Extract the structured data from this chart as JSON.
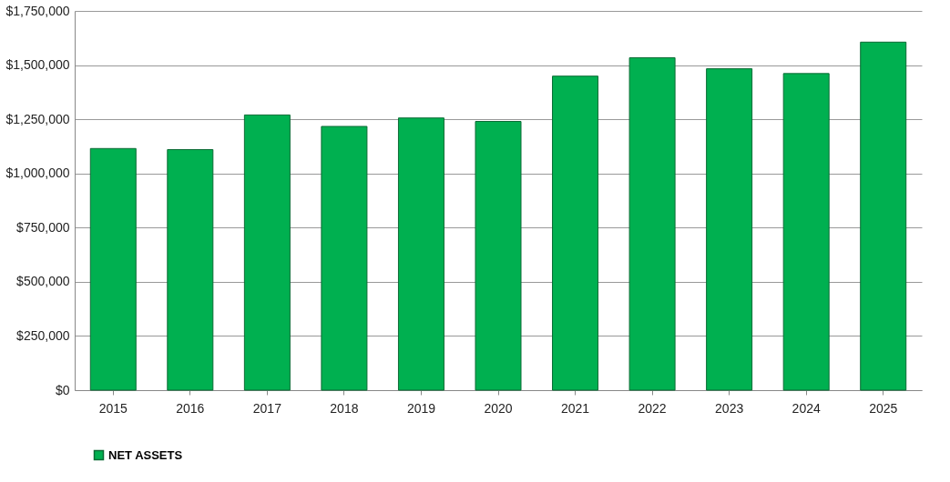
{
  "chart_data": {
    "type": "bar",
    "categories": [
      "2015",
      "2016",
      "2017",
      "2018",
      "2019",
      "2020",
      "2021",
      "2022",
      "2023",
      "2024",
      "2025"
    ],
    "series": [
      {
        "name": "NET ASSETS",
        "color": "#00b050",
        "values": [
          1115000,
          1110000,
          1270000,
          1217000,
          1256000,
          1240000,
          1449000,
          1534000,
          1483000,
          1461000,
          1606000
        ]
      }
    ],
    "ylim": [
      0,
      1750000
    ],
    "yticks": [
      {
        "value": 0,
        "label": "$0"
      },
      {
        "value": 250000,
        "label": "$250,000"
      },
      {
        "value": 500000,
        "label": "$500,000"
      },
      {
        "value": 750000,
        "label": "$750,000"
      },
      {
        "value": 1000000,
        "label": "$1,000,000"
      },
      {
        "value": 1250000,
        "label": "$1,250,000"
      },
      {
        "value": 1500000,
        "label": "$1,500,000"
      },
      {
        "value": 1750000,
        "label": "$1,750,000"
      }
    ],
    "grid": "y",
    "legend": "bottom"
  }
}
